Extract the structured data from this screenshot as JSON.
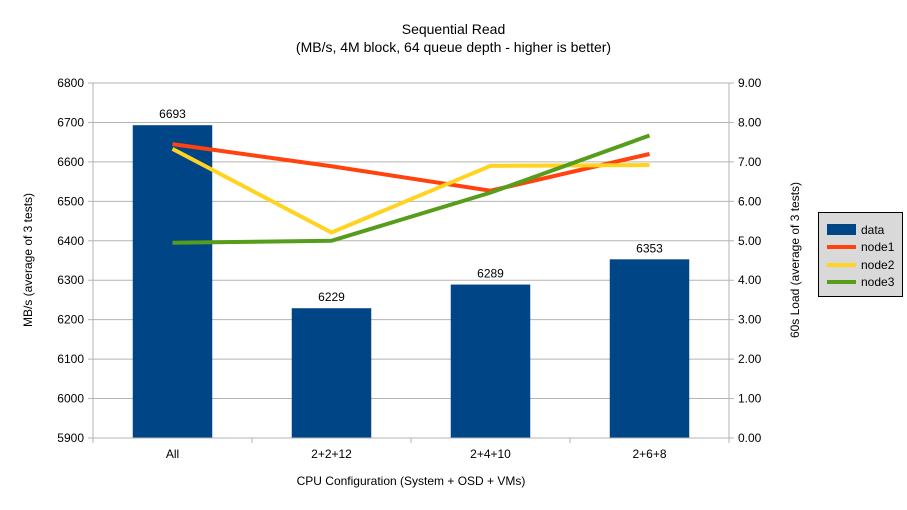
{
  "title": "Sequential Read",
  "subtitle": "(MB/s, 4M block, 64 queue depth - higher is better)",
  "chart_data": {
    "type": "bar+line combo",
    "categories": [
      "All",
      "2+2+12",
      "2+4+10",
      "2+6+8"
    ],
    "xlabel": "CPU Configuration (System + OSD + VMs)",
    "ylabel_left": "MB/s (average of 3 tests)",
    "ylabel_right": "60s Load (average of 3 tests)",
    "left_axis": {
      "min": 5900,
      "max": 6800,
      "step": 100,
      "format": "int"
    },
    "right_axis": {
      "min": 0,
      "max": 9,
      "step": 1,
      "format": "2dp"
    },
    "grid": "horizontal-only",
    "legend_position": "right",
    "series": [
      {
        "name": "data",
        "type": "bar",
        "axis": "left",
        "color": "#004586",
        "values": [
          6693,
          6229,
          6289,
          6353
        ],
        "show_labels": true
      },
      {
        "name": "node1",
        "type": "line",
        "axis": "right",
        "color": "#FF420E",
        "values": [
          7.45,
          6.89,
          6.27,
          7.2
        ]
      },
      {
        "name": "node2",
        "type": "line",
        "axis": "right",
        "color": "#FFD320",
        "values": [
          7.33,
          5.21,
          6.9,
          6.92
        ]
      },
      {
        "name": "node3",
        "type": "line",
        "axis": "right",
        "color": "#579D1C",
        "values": [
          4.95,
          5.0,
          6.22,
          7.67
        ]
      }
    ]
  },
  "colors": {
    "background": "#FFFFFF",
    "grid": "#B3B3B3",
    "axis": "#B3B3B3",
    "text": "#000000",
    "legend_bg": "#D9D9D9",
    "legend_border": "#000000"
  }
}
